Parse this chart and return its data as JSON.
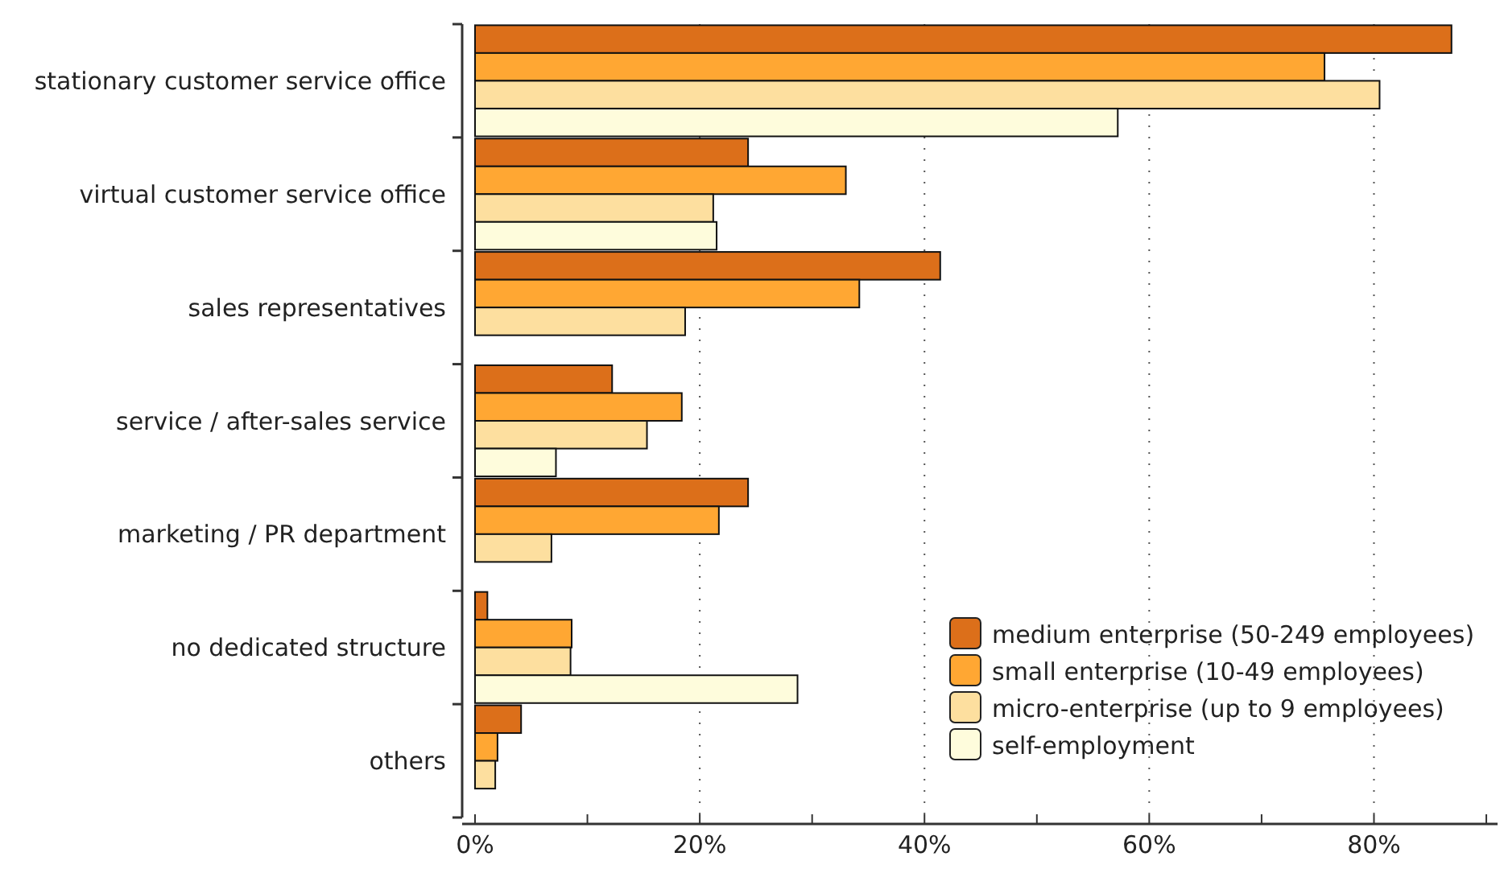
{
  "chart_data": {
    "type": "bar",
    "orientation": "horizontal",
    "categories": [
      "stationary customer service office",
      "virtual customer service office",
      "sales representatives",
      "service / after-sales service",
      "marketing / PR department",
      "no dedicated structure",
      "others"
    ],
    "series": [
      {
        "name": "medium enterprise (50-249 employees)",
        "color": "#dc6f1a",
        "values": [
          86.9,
          24.3,
          41.4,
          12.2,
          24.3,
          1.1,
          4.1
        ]
      },
      {
        "name": "small enterprise (10-49 employees)",
        "color": "#ffa733",
        "values": [
          75.6,
          33.0,
          34.2,
          18.4,
          21.7,
          8.6,
          2.0
        ]
      },
      {
        "name": "micro-enterprise (up to 9 employees)",
        "color": "#fddf9f",
        "values": [
          80.5,
          21.2,
          18.7,
          15.3,
          6.8,
          8.5,
          1.8
        ]
      },
      {
        "name": "self-employment",
        "color": "#fefcdc",
        "values": [
          57.2,
          21.5,
          null,
          7.2,
          null,
          28.7,
          null
        ]
      }
    ],
    "xlim": [
      0,
      91
    ],
    "xticks": [
      {
        "value": 0,
        "label": "0%"
      },
      {
        "value": 10,
        "label": null
      },
      {
        "value": 20,
        "label": "20%"
      },
      {
        "value": 30,
        "label": null
      },
      {
        "value": 40,
        "label": "40%"
      },
      {
        "value": 50,
        "label": null
      },
      {
        "value": 60,
        "label": "60%"
      },
      {
        "value": 70,
        "label": null
      },
      {
        "value": 80,
        "label": "80%"
      },
      {
        "value": 90,
        "label": null
      }
    ],
    "grid": "x",
    "legend": "bottom right"
  }
}
